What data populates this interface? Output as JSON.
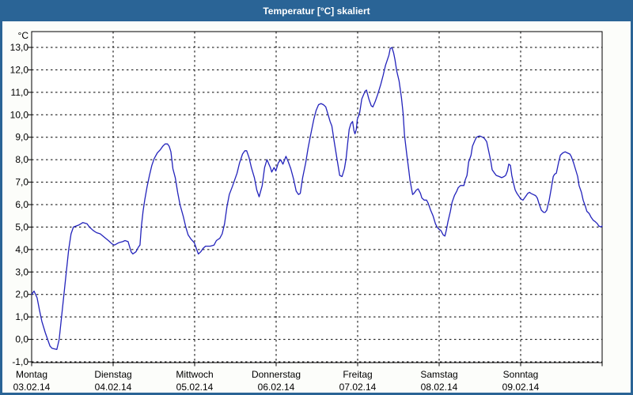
{
  "window": {
    "title": "Temperatur [°C] skaliert",
    "titlebar_color": "#2A6496",
    "border_color": "#2A6496",
    "content_background": "#FCFDFA"
  },
  "chart_data": {
    "type": "line",
    "title": "Temperatur [°C] skaliert",
    "unit_label": "°C",
    "ylabel": "",
    "xlabel": "",
    "ylim": [
      -1.0,
      13.0
    ],
    "y_tick_step": 1.0,
    "y_tick_labels": [
      "13,0",
      "12,0",
      "11,0",
      "10,0",
      "9,0",
      "8,0",
      "7,0",
      "6,0",
      "5,0",
      "4,0",
      "3,0",
      "2,0",
      "1,0",
      "0,0",
      "-1,0"
    ],
    "grid": "dashed",
    "grid_color": "#000000",
    "line_color": "#2323BB",
    "x_axis_days": [
      {
        "name": "Montag",
        "date": "03.02.14"
      },
      {
        "name": "Dienstag",
        "date": "04.02.14"
      },
      {
        "name": "Mittwoch",
        "date": "05.02.14"
      },
      {
        "name": "Donnerstag",
        "date": "06.02.14"
      },
      {
        "name": "Freitag",
        "date": "07.02.14"
      },
      {
        "name": "Samstag",
        "date": "08.02.14"
      },
      {
        "name": "Sonntag",
        "date": "09.02.14"
      }
    ],
    "x_range_hours": [
      0,
      168
    ],
    "series": [
      {
        "name": "Temperatur",
        "unit": "°C",
        "points": [
          [
            0,
            2.0
          ],
          [
            0.7,
            2.15
          ],
          [
            1.6,
            1.85
          ],
          [
            2.3,
            1.3
          ],
          [
            3,
            0.8
          ],
          [
            4,
            0.3
          ],
          [
            4.7,
            0
          ],
          [
            5.4,
            -0.3
          ],
          [
            6,
            -0.4
          ],
          [
            7.4,
            -0.45
          ],
          [
            8.1,
            0
          ],
          [
            8.8,
            1
          ],
          [
            9.5,
            2
          ],
          [
            10.2,
            3
          ],
          [
            10.9,
            4
          ],
          [
            11.6,
            4.7
          ],
          [
            12.3,
            5
          ],
          [
            14,
            5.1
          ],
          [
            15.1,
            5.2
          ],
          [
            16.3,
            5.15
          ],
          [
            17,
            5
          ],
          [
            18.1,
            4.85
          ],
          [
            19.1,
            4.75
          ],
          [
            20.2,
            4.7
          ],
          [
            21.4,
            4.55
          ],
          [
            22.6,
            4.4
          ],
          [
            23.7,
            4.25
          ],
          [
            24.4,
            4.2
          ],
          [
            25.6,
            4.3
          ],
          [
            26.8,
            4.35
          ],
          [
            27.5,
            4.4
          ],
          [
            28.4,
            4.35
          ],
          [
            29.3,
            3.9
          ],
          [
            29.8,
            3.8
          ],
          [
            30.7,
            3.9
          ],
          [
            31.4,
            4.1
          ],
          [
            31.9,
            4.2
          ],
          [
            32.3,
            5
          ],
          [
            32.8,
            5.7
          ],
          [
            33.3,
            6.2
          ],
          [
            34,
            6.8
          ],
          [
            34.7,
            7.3
          ],
          [
            35.4,
            7.75
          ],
          [
            36.1,
            8.05
          ],
          [
            37,
            8.3
          ],
          [
            37.9,
            8.45
          ],
          [
            38.6,
            8.6
          ],
          [
            39.3,
            8.7
          ],
          [
            40,
            8.7
          ],
          [
            40.5,
            8.6
          ],
          [
            41,
            8.35
          ],
          [
            41.6,
            7.6
          ],
          [
            42.3,
            7.2
          ],
          [
            43,
            6.55
          ],
          [
            43.7,
            6
          ],
          [
            44.7,
            5.45
          ],
          [
            45.4,
            5
          ],
          [
            46.1,
            4.65
          ],
          [
            47,
            4.45
          ],
          [
            47.9,
            4.3
          ],
          [
            48.6,
            4
          ],
          [
            49.1,
            3.8
          ],
          [
            49.8,
            3.9
          ],
          [
            50.5,
            4.05
          ],
          [
            51.2,
            4.15
          ],
          [
            52.6,
            4.15
          ],
          [
            53.7,
            4.2
          ],
          [
            54.4,
            4.4
          ],
          [
            55.4,
            4.5
          ],
          [
            56.1,
            4.7
          ],
          [
            56.8,
            5.15
          ],
          [
            57.5,
            5.9
          ],
          [
            58.2,
            6.45
          ],
          [
            59.1,
            6.8
          ],
          [
            59.8,
            7.1
          ],
          [
            60.5,
            7.4
          ],
          [
            61.2,
            7.85
          ],
          [
            62.1,
            8.25
          ],
          [
            62.8,
            8.4
          ],
          [
            63.3,
            8.4
          ],
          [
            64,
            8.1
          ],
          [
            64.7,
            7.65
          ],
          [
            65.6,
            7.2
          ],
          [
            66.3,
            6.65
          ],
          [
            67,
            6.35
          ],
          [
            67.9,
            6.85
          ],
          [
            68.6,
            7.65
          ],
          [
            69.3,
            8
          ],
          [
            70.3,
            7.65
          ],
          [
            70.7,
            7.45
          ],
          [
            71.4,
            7.65
          ],
          [
            71.9,
            7.5
          ],
          [
            72.6,
            7.85
          ],
          [
            73.3,
            8
          ],
          [
            74,
            7.8
          ],
          [
            74.9,
            8.15
          ],
          [
            75.6,
            7.9
          ],
          [
            76.3,
            7.6
          ],
          [
            77.2,
            7.1
          ],
          [
            77.9,
            6.6
          ],
          [
            78.6,
            6.45
          ],
          [
            79.1,
            6.5
          ],
          [
            79.8,
            7.2
          ],
          [
            80.7,
            7.85
          ],
          [
            81.4,
            8.5
          ],
          [
            82.1,
            9.05
          ],
          [
            83.1,
            9.8
          ],
          [
            83.8,
            10.2
          ],
          [
            84.5,
            10.45
          ],
          [
            85.2,
            10.5
          ],
          [
            85.9,
            10.45
          ],
          [
            86.6,
            10.35
          ],
          [
            87.3,
            10
          ],
          [
            87.9,
            9.7
          ],
          [
            88.4,
            9.5
          ],
          [
            89.1,
            8.8
          ],
          [
            90,
            7.95
          ],
          [
            90.7,
            7.3
          ],
          [
            91.4,
            7.25
          ],
          [
            92.1,
            7.6
          ],
          [
            92.6,
            8.05
          ],
          [
            93.1,
            8.8
          ],
          [
            93.5,
            9.35
          ],
          [
            94,
            9.6
          ],
          [
            94.5,
            9.7
          ],
          [
            94.9,
            9.3
          ],
          [
            95.2,
            9.15
          ],
          [
            95.6,
            9.35
          ],
          [
            95.9,
            9.8
          ],
          [
            96.6,
            10.1
          ],
          [
            97.2,
            10.7
          ],
          [
            98.2,
            11.05
          ],
          [
            98.6,
            11.1
          ],
          [
            99.3,
            10.7
          ],
          [
            100,
            10.4
          ],
          [
            100.5,
            10.35
          ],
          [
            101.2,
            10.6
          ],
          [
            101.9,
            10.9
          ],
          [
            102.8,
            11.35
          ],
          [
            103.5,
            11.75
          ],
          [
            104.2,
            12.2
          ],
          [
            105.2,
            12.65
          ],
          [
            105.6,
            12.95
          ],
          [
            106.1,
            13
          ],
          [
            106.6,
            12.75
          ],
          [
            107,
            12.45
          ],
          [
            107.5,
            11.95
          ],
          [
            108.2,
            11.5
          ],
          [
            108.9,
            10.75
          ],
          [
            109.4,
            10.05
          ],
          [
            109.8,
            9.1
          ],
          [
            110.5,
            8.2
          ],
          [
            111,
            7.6
          ],
          [
            111.4,
            7.1
          ],
          [
            112.2,
            6.45
          ],
          [
            112.6,
            6.5
          ],
          [
            113.3,
            6.65
          ],
          [
            113.8,
            6.7
          ],
          [
            114.5,
            6.5
          ],
          [
            114.9,
            6.3
          ],
          [
            115.6,
            6.2
          ],
          [
            116.3,
            6.2
          ],
          [
            116.8,
            6.05
          ],
          [
            117.5,
            5.75
          ],
          [
            118.2,
            5.5
          ],
          [
            118.9,
            5.15
          ],
          [
            119.4,
            5
          ],
          [
            120,
            4.9
          ],
          [
            120.5,
            4.85
          ],
          [
            121.2,
            4.65
          ],
          [
            121.7,
            4.6
          ],
          [
            122.1,
            4.85
          ],
          [
            122.6,
            5.25
          ],
          [
            123.3,
            5.7
          ],
          [
            123.8,
            6.1
          ],
          [
            124.5,
            6.4
          ],
          [
            125.2,
            6.6
          ],
          [
            125.6,
            6.75
          ],
          [
            126.3,
            6.85
          ],
          [
            127.3,
            6.85
          ],
          [
            127.7,
            7.1
          ],
          [
            128.2,
            7.3
          ],
          [
            128.7,
            7.9
          ],
          [
            129.4,
            8.2
          ],
          [
            129.8,
            8.6
          ],
          [
            130.5,
            8.85
          ],
          [
            131,
            9
          ],
          [
            131.7,
            9.05
          ],
          [
            132.1,
            9.05
          ],
          [
            132.8,
            9
          ],
          [
            133.3,
            8.95
          ],
          [
            134,
            8.8
          ],
          [
            134.5,
            8.45
          ],
          [
            135.2,
            7.95
          ],
          [
            135.6,
            7.55
          ],
          [
            136.3,
            7.4
          ],
          [
            136.8,
            7.3
          ],
          [
            137.7,
            7.25
          ],
          [
            138.4,
            7.2
          ],
          [
            139.1,
            7.25
          ],
          [
            139.6,
            7.3
          ],
          [
            140.1,
            7.5
          ],
          [
            140.5,
            7.8
          ],
          [
            141,
            7.75
          ],
          [
            141.4,
            7.3
          ],
          [
            141.9,
            6.95
          ],
          [
            142.4,
            6.65
          ],
          [
            142.9,
            6.5
          ],
          [
            143.6,
            6.35
          ],
          [
            144,
            6.25
          ],
          [
            144.7,
            6.2
          ],
          [
            145.4,
            6.35
          ],
          [
            146.1,
            6.5
          ],
          [
            146.6,
            6.55
          ],
          [
            147,
            6.5
          ],
          [
            147.7,
            6.45
          ],
          [
            148.4,
            6.4
          ],
          [
            148.9,
            6.3
          ],
          [
            149.4,
            6.05
          ],
          [
            150.1,
            5.75
          ],
          [
            150.8,
            5.65
          ],
          [
            151.2,
            5.65
          ],
          [
            151.7,
            5.75
          ],
          [
            152.4,
            6.2
          ],
          [
            153.1,
            6.8
          ],
          [
            153.6,
            7.25
          ],
          [
            154,
            7.35
          ],
          [
            154.5,
            7.4
          ],
          [
            155.2,
            7.9
          ],
          [
            155.7,
            8.2
          ],
          [
            156.4,
            8.3
          ],
          [
            157.1,
            8.35
          ],
          [
            157.8,
            8.3
          ],
          [
            158.5,
            8.25
          ],
          [
            158.9,
            8.15
          ],
          [
            159.6,
            7.85
          ],
          [
            160.1,
            7.6
          ],
          [
            160.8,
            7.25
          ],
          [
            161.2,
            6.85
          ],
          [
            161.9,
            6.55
          ],
          [
            162.4,
            6.2
          ],
          [
            163.1,
            5.9
          ],
          [
            163.5,
            5.7
          ],
          [
            164.2,
            5.6
          ],
          [
            164.7,
            5.45
          ],
          [
            165.4,
            5.3
          ],
          [
            165.9,
            5.25
          ],
          [
            166.6,
            5.15
          ],
          [
            167,
            5.05
          ],
          [
            167.7,
            5
          ],
          [
            168,
            5.05
          ]
        ]
      }
    ]
  }
}
